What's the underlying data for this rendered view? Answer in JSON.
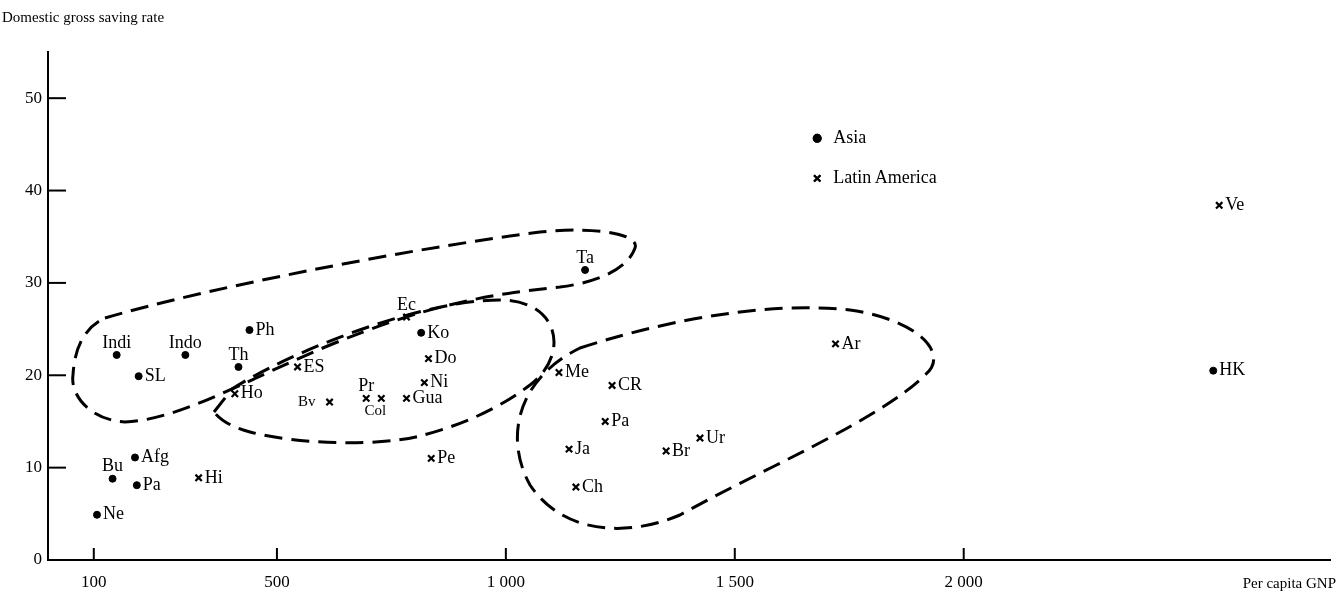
{
  "chart_data": {
    "type": "scatter",
    "ylabel": "Domestic gross saving rate",
    "xlabel": "Per capita GNP",
    "xlim": [
      0,
      2800
    ],
    "xticks": [
      100,
      500,
      {
        "value": 1000,
        "label": "1 000"
      },
      {
        "value": 1500,
        "label": "1 500"
      },
      {
        "value": 2000,
        "label": "2 000"
      }
    ],
    "ylim": [
      0,
      55
    ],
    "yticks": [
      0,
      10,
      20,
      30,
      40,
      50
    ],
    "grid": false,
    "legend": "top",
    "series": [
      {
        "name": "Asia",
        "color": "#000000",
        "marker": "circle",
        "x": [
          150,
          198,
          300,
          440,
          416,
          815,
          1173,
          190,
          141,
          194,
          107,
          2545
        ],
        "values": [
          22.2,
          19.9,
          22.2,
          24.9,
          20.9,
          24.6,
          31.4,
          11.1,
          8.8,
          8.1,
          4.9,
          20.5
        ]
      },
      {
        "name": "Latin America",
        "color": "#000000",
        "marker": "cross",
        "x": [
          783,
          545,
          408,
          615,
          695,
          728,
          783,
          831,
          822,
          837,
          329,
          1116,
          1232,
          1217,
          1138,
          1153,
          1350,
          1424,
          1720,
          2558
        ],
        "values": [
          26.3,
          20.9,
          18.0,
          17.1,
          17.5,
          17.5,
          17.5,
          21.8,
          19.2,
          11.0,
          8.9,
          20.3,
          18.9,
          15.0,
          12.0,
          7.9,
          11.8,
          13.2,
          23.4,
          38.4
        ]
      }
    ],
    "annotations": [
      {
        "text": "Indi",
        "x": 150,
        "y": 22.2
      },
      {
        "text": "SL",
        "x": 198,
        "y": 19.9
      },
      {
        "text": "Indo",
        "x": 300,
        "y": 22.2
      },
      {
        "text": "Ph",
        "x": 440,
        "y": 24.9
      },
      {
        "text": "Th",
        "x": 416,
        "y": 20.9
      },
      {
        "text": "Ko",
        "x": 815,
        "y": 24.6
      },
      {
        "text": "Ta",
        "x": 1173,
        "y": 31.4
      },
      {
        "text": "Afg",
        "x": 190,
        "y": 11.1
      },
      {
        "text": "Bu",
        "x": 141,
        "y": 8.8
      },
      {
        "text": "Pa",
        "x": 194,
        "y": 8.1
      },
      {
        "text": "Ne",
        "x": 107,
        "y": 4.9
      },
      {
        "text": "HK",
        "x": 2545,
        "y": 20.5
      },
      {
        "text": "Ec",
        "x": 783,
        "y": 26.3
      },
      {
        "text": "ES",
        "x": 545,
        "y": 20.9
      },
      {
        "text": "Ho",
        "x": 408,
        "y": 18.0
      },
      {
        "text": "Bv",
        "x": 615,
        "y": 17.1
      },
      {
        "text": "Pr",
        "x": 695,
        "y": 17.5
      },
      {
        "text": "Col",
        "x": 728,
        "y": 17.5
      },
      {
        "text": "Gua",
        "x": 783,
        "y": 17.5
      },
      {
        "text": "Do",
        "x": 831,
        "y": 21.8
      },
      {
        "text": "Ni",
        "x": 822,
        "y": 19.2
      },
      {
        "text": "Pe",
        "x": 837,
        "y": 11.0
      },
      {
        "text": "Hi",
        "x": 329,
        "y": 8.9
      },
      {
        "text": "Me",
        "x": 1116,
        "y": 20.3
      },
      {
        "text": "CR",
        "x": 1232,
        "y": 18.9
      },
      {
        "text": "Pa",
        "x": 1217,
        "y": 15.0
      },
      {
        "text": "Ja",
        "x": 1138,
        "y": 12.0
      },
      {
        "text": "Ch",
        "x": 1153,
        "y": 7.9
      },
      {
        "text": "Br",
        "x": 1350,
        "y": 11.8
      },
      {
        "text": "Ur",
        "x": 1424,
        "y": 13.2
      },
      {
        "text": "Ar",
        "x": 1720,
        "y": 23.4
      },
      {
        "text": "Ve",
        "x": 2558,
        "y": 38.4
      }
    ]
  }
}
